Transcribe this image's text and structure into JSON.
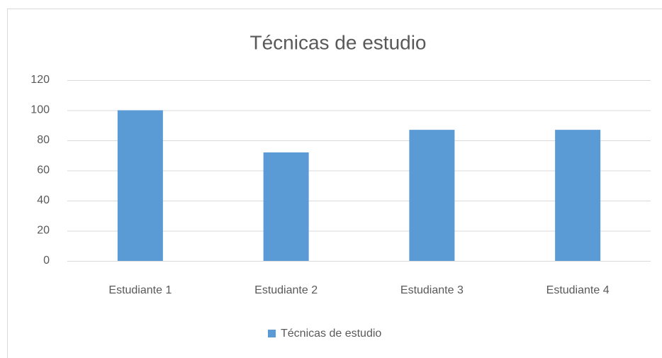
{
  "chart_data": {
    "type": "bar",
    "title": "Técnicas de estudio",
    "categories": [
      "Estudiante 1",
      "Estudiante 2",
      "Estudiante 3",
      "Estudiante 4"
    ],
    "series": [
      {
        "name": "Técnicas de estudio",
        "color": "#5b9bd5",
        "values": [
          100,
          72,
          87,
          87
        ]
      }
    ],
    "ylim": [
      0,
      120
    ],
    "yticks": [
      0,
      20,
      40,
      60,
      80,
      100,
      120
    ],
    "grid": true,
    "legend": "bottom"
  }
}
